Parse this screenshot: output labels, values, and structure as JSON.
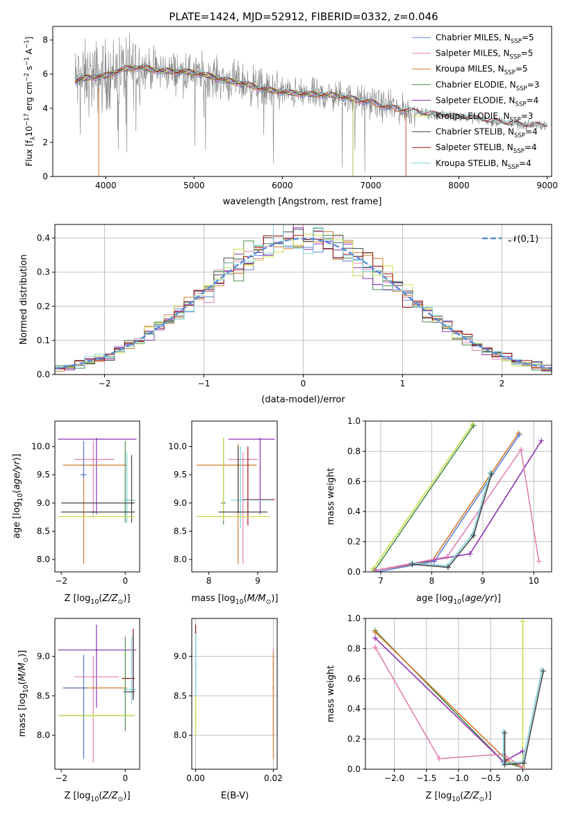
{
  "figure_title": "PLATE=1424, MJD=52912, FIBERID=0332, z=0.046",
  "colors": {
    "Chabrier MILES": "#5b7fd6",
    "Salpeter MILES": "#e07fb0",
    "Kroupa MILES": "#d27a2a",
    "Chabrier ELODIE": "#4a8a4a",
    "Salpeter ELODIE": "#8a2fb0",
    "Kroupa ELODIE": "#c9e04a",
    "Chabrier STELIB": "#444444",
    "Salpeter STELIB": "#9a1010",
    "Kroupa STELIB": "#7fd0d8",
    "data": "#808080",
    "normal": "#5b8ad6"
  },
  "chart_data": [
    {
      "id": "spectrum",
      "type": "line",
      "title": "PLATE=1424, MJD=52912, FIBERID=0332, z=0.046",
      "xlabel": "wavelength [Angstrom, rest frame]",
      "ylabel": "Flux [f_λ 10^-17 erg cm^-2 s^-1 A^-1]",
      "xlim": [
        3400,
        9050
      ],
      "ylim": [
        0,
        8.8
      ],
      "xticks": [
        4000,
        5000,
        6000,
        7000,
        8000,
        9000
      ],
      "yticks": [
        0,
        2,
        4,
        6,
        8
      ],
      "legend_position": "top-right",
      "legend": [
        {
          "label": "Chabrier MILES, N",
          "sub": "SSP",
          "suffix": "=5",
          "color": "#5b7fd6"
        },
        {
          "label": "Salpeter MILES, N",
          "sub": "SSP",
          "suffix": "=5",
          "color": "#e07fb0"
        },
        {
          "label": "Kroupa MILES, N",
          "sub": "SSP",
          "suffix": "=5",
          "color": "#d27a2a"
        },
        {
          "label": "Chabrier ELODIE, N",
          "sub": "SSP",
          "suffix": "=3",
          "color": "#4a8a4a"
        },
        {
          "label": "Salpeter ELODIE, N",
          "sub": "SSP",
          "suffix": "=4",
          "color": "#8a2fb0"
        },
        {
          "label": "Kroupa ELODIE, N",
          "sub": "SSP",
          "suffix": "=3",
          "color": "#c9e04a"
        },
        {
          "label": "Chabrier STELIB, N",
          "sub": "SSP",
          "suffix": "=4",
          "color": "#444444"
        },
        {
          "label": "Salpeter STELIB, N",
          "sub": "SSP",
          "suffix": "=4",
          "color": "#9a1010"
        },
        {
          "label": "Kroupa STELIB, N",
          "sub": "SSP",
          "suffix": "=4",
          "color": "#7fd0d8"
        }
      ],
      "continuum": [
        [
          3650,
          5.6
        ],
        [
          3800,
          5.8
        ],
        [
          4000,
          5.9
        ],
        [
          4200,
          6.3
        ],
        [
          4400,
          6.4
        ],
        [
          4600,
          6.2
        ],
        [
          4800,
          6.15
        ],
        [
          5000,
          6.1
        ],
        [
          5200,
          5.85
        ],
        [
          5400,
          5.6
        ],
        [
          5600,
          5.4
        ],
        [
          5800,
          5.1
        ],
        [
          6000,
          4.95
        ],
        [
          6200,
          4.85
        ],
        [
          6400,
          4.8
        ],
        [
          6600,
          4.75
        ],
        [
          6800,
          4.55
        ],
        [
          7000,
          4.35
        ],
        [
          7200,
          4.05
        ],
        [
          7400,
          3.9
        ],
        [
          7600,
          3.7
        ],
        [
          7800,
          3.6
        ],
        [
          8000,
          3.5
        ],
        [
          8200,
          3.4
        ],
        [
          8400,
          3.2
        ],
        [
          8600,
          3.1
        ],
        [
          8800,
          3.0
        ],
        [
          9000,
          3.0
        ]
      ]
    },
    {
      "id": "residuals",
      "type": "line",
      "xlabel": "(data-model)/error",
      "ylabel": "Normed distribution",
      "xlim": [
        -2.5,
        2.5
      ],
      "ylim": [
        0,
        0.44
      ],
      "xticks": [
        -2,
        -1,
        0,
        1,
        2
      ],
      "yticks": [
        0.0,
        0.1,
        0.2,
        0.3,
        0.4
      ],
      "legend": "𝒩(0,1)",
      "legend_position": "top-right"
    },
    {
      "id": "age_vs_Z",
      "type": "scatter",
      "xlabel": "Z [log10(Z/Z⊙)]",
      "ylabel": "age  [log10(age/yr)]",
      "xlim": [
        -2.2,
        0.45
      ],
      "ylim": [
        7.78,
        10.45
      ],
      "xticks": [
        -2,
        0
      ],
      "yticks": [
        8.0,
        8.5,
        9.0,
        9.5,
        10.0
      ],
      "points": [
        {
          "s": "Salpeter ELODIE",
          "x": -0.9,
          "y": 10.13,
          "xe": [
            -2.1,
            0.35
          ],
          "ye": [
            8.8,
            10.15
          ]
        },
        {
          "s": "Kroupa MILES",
          "x": -1.3,
          "y": 9.67,
          "xe": [
            -1.95,
            0.05
          ],
          "ye": [
            7.92,
            10.0
          ]
        },
        {
          "s": "Salpeter MILES",
          "x": -1.0,
          "y": 9.77,
          "xe": [
            -1.6,
            -0.35
          ],
          "ye": [
            8.8,
            10.1
          ]
        },
        {
          "s": "Chabrier MILES",
          "x": -1.3,
          "y": 9.5,
          "xe": [
            -1.4,
            -1.2
          ],
          "ye": [
            9.43,
            10.1
          ]
        },
        {
          "s": "Chabrier ELODIE",
          "x": 0.0,
          "y": 9.05,
          "xe": [
            -0.05,
            0.3
          ],
          "ye": [
            8.65,
            10.1
          ]
        },
        {
          "s": "Kroupa STELIB",
          "x": 0.05,
          "y": 9.05,
          "xe": [
            -0.05,
            0.3
          ],
          "ye": [
            8.65,
            9.9
          ]
        },
        {
          "s": "Chabrier STELIB",
          "x": 0.2,
          "y": 9.0,
          "xe": [
            -2.0,
            0.3
          ],
          "ye": [
            8.65,
            9.85
          ]
        },
        {
          "s": "Chabrier STELIB",
          "x": -1.0,
          "y": 8.84,
          "xe": [
            -2.0,
            0.3
          ],
          "ye": [
            8.82,
            8.86
          ]
        },
        {
          "s": "Kroupa ELODIE",
          "x": -1.0,
          "y": 8.76,
          "xe": [
            -2.1,
            0.3
          ],
          "ye": [
            8.74,
            8.78
          ]
        }
      ]
    },
    {
      "id": "age_vs_mass",
      "type": "scatter",
      "xlabel": "mass [log10(M/M⊙)]",
      "ylabel": "",
      "xlim": [
        7.65,
        9.4
      ],
      "ylim": [
        7.78,
        10.45
      ],
      "xticks": [
        8,
        9
      ],
      "yticks": [
        8.0,
        8.5,
        9.0,
        9.5,
        10.0
      ],
      "points": [
        {
          "s": "Salpeter ELODIE",
          "x": 9.05,
          "y": 10.13,
          "xe": [
            8.4,
            9.35
          ],
          "ye": [
            8.8,
            10.15
          ]
        },
        {
          "s": "Kroupa MILES",
          "x": 8.6,
          "y": 9.67,
          "xe": [
            7.75,
            8.98
          ],
          "ye": [
            7.92,
            10.05
          ]
        },
        {
          "s": "Salpeter MILES",
          "x": 8.7,
          "y": 9.77,
          "xe": [
            8.4,
            9.0
          ],
          "ye": [
            7.92,
            9.9
          ]
        },
        {
          "s": "Salpeter STELIB",
          "x": 8.8,
          "y": 9.06,
          "xe": [
            8.7,
            9.35
          ],
          "ye": [
            8.6,
            10.0
          ]
        },
        {
          "s": "Kroupa STELIB",
          "x": 8.65,
          "y": 9.05,
          "xe": [
            8.45,
            9.3
          ],
          "ye": [
            8.55,
            10.0
          ]
        },
        {
          "s": "Chabrier ELODIE",
          "x": 8.3,
          "y": 9.0,
          "xe": [
            8.25,
            8.35
          ],
          "ye": [
            8.62,
            10.15
          ]
        },
        {
          "s": "Kroupa ELODIE",
          "x": 8.3,
          "y": 8.76,
          "xe": [
            7.75,
            9.25
          ],
          "ye": [
            8.7,
            10.15
          ]
        },
        {
          "s": "Chabrier STELIB",
          "x": 8.6,
          "y": 8.84,
          "xe": [
            8.2,
            9.2
          ],
          "ye": [
            8.82,
            10.0
          ]
        }
      ]
    },
    {
      "id": "weight_vs_age",
      "type": "line",
      "xlabel": "age  [log10(age/yr)]",
      "ylabel": "mass weight",
      "xlim": [
        6.7,
        10.35
      ],
      "ylim": [
        0,
        1.0
      ],
      "xticks": [
        7,
        8,
        9,
        10
      ],
      "yticks": [
        0.0,
        0.2,
        0.4,
        0.6,
        0.8,
        1.0
      ],
      "series": [
        {
          "s": "Kroupa ELODIE",
          "x": [
            6.85,
            8.8
          ],
          "y": [
            0.02,
            0.98
          ]
        },
        {
          "s": "Chabrier ELODIE",
          "x": [
            6.88,
            8.82
          ],
          "y": [
            0.01,
            0.97
          ]
        },
        {
          "s": "Kroupa MILES",
          "x": [
            6.9,
            8.0,
            9.7
          ],
          "y": [
            0.01,
            0.07,
            0.92
          ]
        },
        {
          "s": "Chabrier MILES",
          "x": [
            6.92,
            8.05,
            9.72
          ],
          "y": [
            0.0,
            0.07,
            0.91
          ]
        },
        {
          "s": "Salpeter ELODIE",
          "x": [
            6.9,
            8.05,
            8.75,
            10.15
          ],
          "y": [
            0.01,
            0.08,
            0.12,
            0.87
          ]
        },
        {
          "s": "Salpeter MILES",
          "x": [
            6.9,
            8.3,
            9.75,
            10.1
          ],
          "y": [
            0.01,
            0.1,
            0.81,
            0.07
          ]
        },
        {
          "s": "Kroupa STELIB",
          "x": [
            7.6,
            8.3,
            8.8,
            9.15
          ],
          "y": [
            0.06,
            0.04,
            0.25,
            0.66
          ]
        },
        {
          "s": "Chabrier STELIB",
          "x": [
            7.62,
            8.32,
            8.82,
            9.17
          ],
          "y": [
            0.05,
            0.03,
            0.24,
            0.65
          ]
        }
      ]
    },
    {
      "id": "mass_vs_Z",
      "type": "scatter",
      "xlabel": "Z [log10(Z/Z⊙)]",
      "ylabel": "mass [log10(M/M⊙)]",
      "xlim": [
        -2.2,
        0.45
      ],
      "ylim": [
        7.57,
        9.48
      ],
      "xticks": [
        -2,
        0
      ],
      "yticks": [
        8.0,
        8.5,
        9.0
      ],
      "points": [
        {
          "s": "Salpeter ELODIE",
          "x": -0.9,
          "y": 9.08,
          "xe": [
            -2.1,
            0.35
          ],
          "ye": [
            8.35,
            9.4
          ]
        },
        {
          "s": "Salpeter MILES",
          "x": -1.0,
          "y": 8.74,
          "xe": [
            -1.6,
            -0.2
          ],
          "ye": [
            7.65,
            9.0
          ]
        },
        {
          "s": "Kroupa MILES",
          "x": -1.3,
          "y": 8.6,
          "xe": [
            -1.9,
            0.05
          ],
          "ye": [
            7.72,
            9.0
          ]
        },
        {
          "s": "Chabrier MILES",
          "x": -1.3,
          "y": 8.6,
          "xe": [
            -1.95,
            -1.2
          ],
          "ye": [
            7.7,
            9.02
          ]
        },
        {
          "s": "Salpeter STELIB",
          "x": 0.25,
          "y": 8.72,
          "xe": [
            -0.1,
            0.3
          ],
          "ye": [
            8.45,
            9.35
          ]
        },
        {
          "s": "Kroupa STELIB",
          "x": 0.2,
          "y": 8.58,
          "xe": [
            -0.05,
            0.35
          ],
          "ye": [
            8.4,
            9.25
          ]
        },
        {
          "s": "Chabrier STELIB",
          "x": 0.25,
          "y": 8.55,
          "xe": [
            -0.05,
            0.3
          ],
          "ye": [
            8.45,
            9.3
          ]
        },
        {
          "s": "Chabrier ELODIE",
          "x": 0.0,
          "y": 8.25,
          "xe": [
            -2.1,
            0.3
          ],
          "ye": [
            8.05,
            9.25
          ]
        },
        {
          "s": "Kroupa ELODIE",
          "x": -1.0,
          "y": 8.25,
          "xe": [
            -2.1,
            0.3
          ],
          "ye": [
            8.22,
            8.28
          ]
        }
      ]
    },
    {
      "id": "mass_vs_EBV",
      "type": "scatter",
      "xlabel": "E(B-V)",
      "ylabel": "",
      "xlim": [
        -0.001,
        0.021
      ],
      "ylim": [
        7.57,
        9.48
      ],
      "xticks": [
        0.0,
        0.02
      ],
      "yticks": [
        8.0,
        8.5,
        9.0
      ],
      "points": [
        {
          "s": "Salpeter STELIB",
          "x": 0.0,
          "y": 9.3,
          "ye": [
            9.2,
            9.4
          ]
        },
        {
          "s": "Chabrier ELODIE",
          "x": 0.0,
          "y": 8.9,
          "ye": [
            8.1,
            9.3
          ]
        },
        {
          "s": "Kroupa STELIB",
          "x": 0.0,
          "y": 8.9,
          "ye": [
            8.5,
            9.3
          ]
        },
        {
          "s": "Kroupa ELODIE",
          "x": 0.0,
          "y": 8.25,
          "ye": [
            8.0,
            8.5
          ]
        },
        {
          "s": "Salpeter MILES",
          "x": 0.02,
          "y": 8.9,
          "ye": [
            8.0,
            9.1
          ]
        },
        {
          "s": "Kroupa MILES",
          "x": 0.02,
          "y": 8.6,
          "ye": [
            7.7,
            9.05
          ]
        }
      ]
    },
    {
      "id": "weight_vs_Z",
      "type": "line",
      "xlabel": "Z [log10(Z/Z⊙)]",
      "ylabel": "mass weight",
      "xlim": [
        -2.45,
        0.45
      ],
      "ylim": [
        0,
        1.0
      ],
      "xticks": [
        -2.0,
        -1.5,
        -1.0,
        -0.5,
        0.0
      ],
      "yticks": [
        0.0,
        0.2,
        0.4,
        0.6,
        0.8,
        1.0
      ],
      "series": [
        {
          "s": "Kroupa ELODIE",
          "x": [
            0.0,
            0.0
          ],
          "y": [
            0.02,
            0.98
          ]
        },
        {
          "s": "Chabrier ELODIE",
          "x": [
            -2.3,
            -0.3,
            0.0
          ],
          "y": [
            0.92,
            0.05,
            0.01
          ]
        },
        {
          "s": "Kroupa MILES",
          "x": [
            -2.3,
            -0.25,
            0.0
          ],
          "y": [
            0.91,
            0.06,
            0.01
          ]
        },
        {
          "s": "Salpeter ELODIE",
          "x": [
            -2.3,
            -0.3,
            0.0
          ],
          "y": [
            0.87,
            0.05,
            0.12
          ]
        },
        {
          "s": "Salpeter MILES",
          "x": [
            -2.3,
            -1.3,
            -0.3,
            0.0
          ],
          "y": [
            0.81,
            0.07,
            0.1,
            0.01
          ]
        },
        {
          "s": "Kroupa STELIB",
          "x": [
            -0.3,
            -0.3,
            0.0,
            0.3
          ],
          "y": [
            0.25,
            0.04,
            0.05,
            0.66
          ]
        },
        {
          "s": "Chabrier STELIB",
          "x": [
            -0.28,
            -0.28,
            0.02,
            0.32
          ],
          "y": [
            0.24,
            0.03,
            0.04,
            0.65
          ]
        }
      ]
    }
  ]
}
